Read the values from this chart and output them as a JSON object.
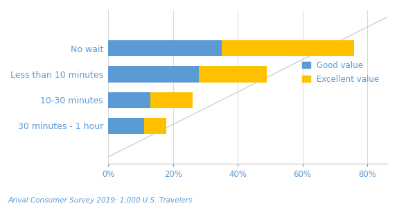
{
  "categories": [
    "No wait",
    "Less than 10 minutes",
    "10-30 minutes",
    "30 minutes - 1 hour"
  ],
  "good_value": [
    35,
    28,
    13,
    11
  ],
  "excellent_value": [
    41,
    21,
    13,
    7
  ],
  "good_color": "#5B9BD5",
  "excellent_color": "#FFC000",
  "legend_labels": [
    "Good value",
    "Excellent value"
  ],
  "xlabel_ticks": [
    0,
    20,
    40,
    60,
    80
  ],
  "xlabel_tick_labels": [
    "0%",
    "20%",
    "40%",
    "60%",
    "80%"
  ],
  "footnote": "Arival Consumer Survey 2019: 1,000 U.S. Travelers",
  "background_color": "#ffffff",
  "xlim": [
    0,
    86
  ],
  "bar_height": 0.62,
  "label_fontsize": 9,
  "tick_fontsize": 8.5,
  "legend_fontsize": 8.5,
  "footnote_fontsize": 7.5,
  "arc_color": "#cccccc"
}
